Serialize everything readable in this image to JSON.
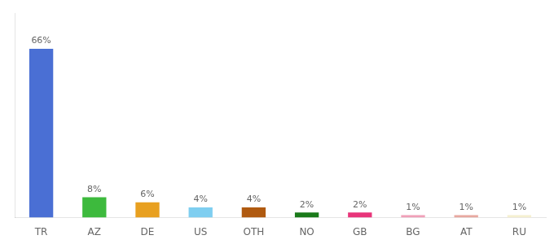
{
  "chart_data": {
    "type": "bar",
    "categories": [
      "TR",
      "AZ",
      "DE",
      "US",
      "OTH",
      "NO",
      "GB",
      "BG",
      "AT",
      "RU"
    ],
    "values": [
      66,
      8,
      6,
      4,
      4,
      2,
      2,
      1,
      1,
      1
    ],
    "value_labels": [
      "66%",
      "8%",
      "6%",
      "4%",
      "4%",
      "2%",
      "2%",
      "1%",
      "1%",
      "1%"
    ],
    "colors": [
      "#4a6fd4",
      "#3dba3d",
      "#e8a020",
      "#7ecef0",
      "#b05a10",
      "#1a7a1a",
      "#e8357a",
      "#f0a0b8",
      "#e8a8a0",
      "#f5f0d0"
    ],
    "ylim": [
      0,
      80
    ],
    "data_labels": true,
    "tick_labels": "x",
    "grid": false
  }
}
